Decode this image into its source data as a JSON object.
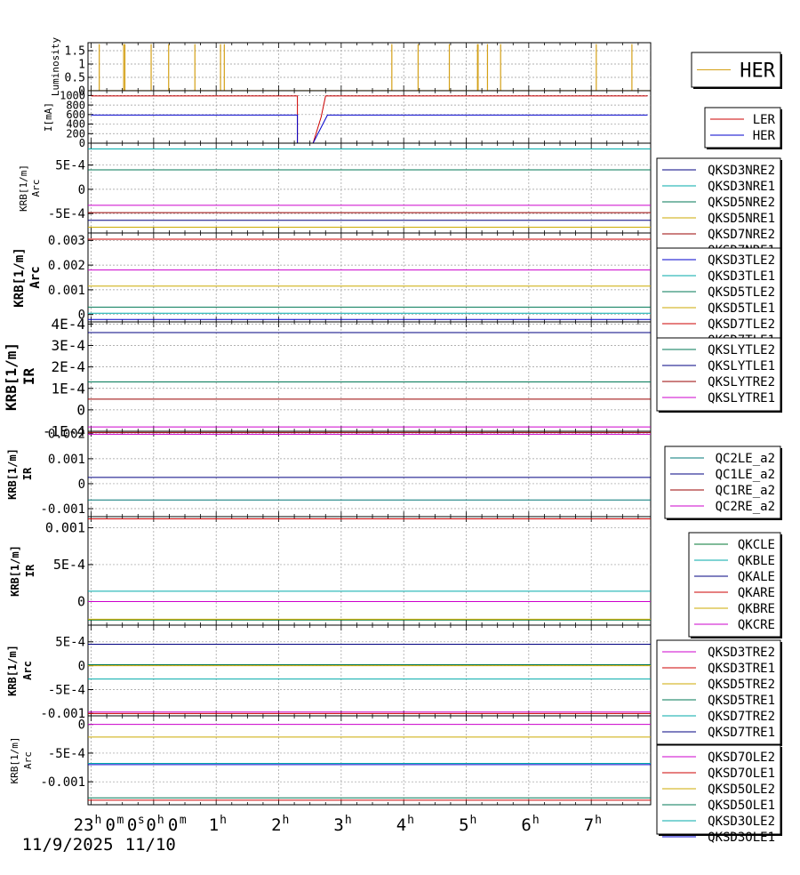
{
  "chart_data": [
    {
      "type": "line",
      "ylabel": "Luminosity",
      "yticks": [
        "0",
        "0.5",
        "1",
        "1.5"
      ],
      "ylim": [
        0,
        1.8
      ],
      "grid": true,
      "legend_placement": "right",
      "series": [
        {
          "name": "HER",
          "color": "#d4a017",
          "spikes_x_hours": [
            -0.87,
            -0.48,
            -0.46,
            -0.04,
            0.24,
            0.66,
            1.07,
            1.13,
            3.81,
            4.23,
            4.73,
            5.18,
            5.19,
            5.34,
            5.55,
            7.08,
            7.65
          ],
          "baseline": 0
        }
      ]
    },
    {
      "type": "line",
      "ylabel": "I[mA]",
      "yticks": [
        "0",
        "200",
        "400",
        "600",
        "800",
        "1000"
      ],
      "ylim": [
        0,
        1100
      ],
      "grid": true,
      "legend_placement": "right",
      "series": [
        {
          "name": "LER",
          "color": "#cc0000",
          "points": [
            [
              -1.0,
              990
            ],
            [
              2.3,
              990
            ],
            [
              2.3,
              0
            ],
            [
              2.55,
              0
            ],
            [
              2.68,
              550
            ],
            [
              2.75,
              990
            ],
            [
              7.9,
              990
            ]
          ]
        },
        {
          "name": "HER",
          "color": "#0000cc",
          "points": [
            [
              -1.0,
              590
            ],
            [
              2.3,
              590
            ],
            [
              2.3,
              0
            ],
            [
              2.55,
              0
            ],
            [
              2.78,
              590
            ],
            [
              7.9,
              590
            ]
          ]
        }
      ]
    },
    {
      "type": "line",
      "ylabel": "KRB[1/m]",
      "ylabel2": "Arc",
      "yticks": [
        "5E-4",
        "0",
        "-5E-4"
      ],
      "ylim": [
        -0.0009,
        0.00095
      ],
      "grid": true,
      "legend_placement": "right",
      "series": [
        {
          "name": "QKSD3NRE2",
          "color": "#000080",
          "value": -0.00064
        },
        {
          "name": "QKSD3NRE1",
          "color": "#00aaaa",
          "value": 0.00083
        },
        {
          "name": "QKSD5NRE2",
          "color": "#007755",
          "value": 0.0004
        },
        {
          "name": "QKSD5NRE1",
          "color": "#ccaa00",
          "value": -0.00078
        },
        {
          "name": "QKSD7NRE2",
          "color": "#990000",
          "value": -0.00048
        },
        {
          "name": "QKSD7NRE1",
          "color": "#cc00cc",
          "value": -0.00033
        }
      ]
    },
    {
      "type": "line",
      "ylabel": "KRB[1/m]",
      "ylabel2": "Arc",
      "yticks": [
        "0.003",
        "0.002",
        "0.001",
        "0"
      ],
      "ylim": [
        -0.0003,
        0.0033
      ],
      "grid": true,
      "legend_placement": "right",
      "series": [
        {
          "name": "QKSD3TLE2",
          "color": "#0000cc",
          "value": -0.0002
        },
        {
          "name": "QKSD3TLE1",
          "color": "#00aaaa",
          "value": 5e-05
        },
        {
          "name": "QKSD5TLE2",
          "color": "#007755",
          "value": 0.0003
        },
        {
          "name": "QKSD5TLE1",
          "color": "#ccaa00",
          "value": 0.00115
        },
        {
          "name": "QKSD7TLE2",
          "color": "#cc0000",
          "value": 0.00305
        },
        {
          "name": "QKSD7TLE1",
          "color": "#cc00cc",
          "value": 0.0018
        }
      ]
    },
    {
      "type": "line",
      "ylabel": "KRB[1/m]",
      "ylabel2": "IR",
      "yticks": [
        "4E-4",
        "3E-4",
        "2E-4",
        "1E-4",
        "0",
        "-1E-4"
      ],
      "ylim": [
        -0.0001,
        0.00041
      ],
      "grid": true,
      "legend_placement": "right",
      "series": [
        {
          "name": "QKSLYTLE2",
          "color": "#007755",
          "value": 0.00013
        },
        {
          "name": "QKSLYTLE1",
          "color": "#000080",
          "value": 0.00036
        },
        {
          "name": "QKSLYTRE2",
          "color": "#990000",
          "value": 5e-05
        },
        {
          "name": "QKSLYTRE1",
          "color": "#cc00cc",
          "value": -8e-05
        }
      ]
    },
    {
      "type": "line",
      "ylabel": "KRB[1/m]",
      "ylabel2": "IR",
      "yticks": [
        "0.002",
        "0.001",
        "0",
        "-0.001"
      ],
      "ylim": [
        -0.00132,
        0.0021
      ],
      "grid": true,
      "legend_placement": "right",
      "series": [
        {
          "name": "QC2LE_a2",
          "color": "#007777",
          "value": -0.00065
        },
        {
          "name": "QC1LE_a2",
          "color": "#000080",
          "value": 0.00025
        },
        {
          "name": "QC1RE_a2",
          "color": "#990000",
          "value": 0.00205
        },
        {
          "name": "QC2RE_a2",
          "color": "#cc00cc",
          "value": 0.00198
        }
      ]
    },
    {
      "type": "line",
      "ylabel": "KRB[1/m]",
      "ylabel2": "IR",
      "yticks": [
        "0.001",
        "5E-4",
        "0"
      ],
      "ylim": [
        -0.00032,
        0.00115
      ],
      "grid": true,
      "legend_placement": "right",
      "series": [
        {
          "name": "QKCLE",
          "color": "#007733",
          "value": -0.00025
        },
        {
          "name": "QKBLE",
          "color": "#00aaaa",
          "value": 0.00014
        },
        {
          "name": "QKALE",
          "color": "#000080",
          "value": 0.0
        },
        {
          "name": "QKARE",
          "color": "#cc0000",
          "value": 0.00112
        },
        {
          "name": "QKBRE",
          "color": "#ccaa00",
          "value": -0.00024
        },
        {
          "name": "QKCRE",
          "color": "#cc00cc",
          "value": 0.0
        }
      ]
    },
    {
      "type": "line",
      "ylabel": "KRB[1/m]",
      "ylabel2": "Arc",
      "yticks": [
        "5E-4",
        "0",
        "-5E-4",
        "-0.001"
      ],
      "ylim": [
        -0.00105,
        0.00085
      ],
      "grid": true,
      "legend_placement": "right",
      "series": [
        {
          "name": "QKSD3TRE2",
          "color": "#cc00cc",
          "value": -0.00097
        },
        {
          "name": "QKSD3TRE1",
          "color": "#cc0000",
          "value": -0.001
        },
        {
          "name": "QKSD5TRE2",
          "color": "#ccaa00",
          "value": 0.0
        },
        {
          "name": "QKSD5TRE1",
          "color": "#007755",
          "value": 2e-05
        },
        {
          "name": "QKSD7TRE2",
          "color": "#00aaaa",
          "value": -0.00028
        },
        {
          "name": "QKSD7TRE1",
          "color": "#000080",
          "value": 0.00045
        }
      ]
    },
    {
      "type": "line",
      "ylabel": "KRB[1/m]",
      "ylabel2": "Arc",
      "yticks": [
        "0",
        "-5E-4",
        "-0.001"
      ],
      "ylim": [
        -0.0014,
        0.00015
      ],
      "grid": true,
      "legend_placement": "right",
      "series": [
        {
          "name": "QKSD7OLE2",
          "color": "#cc00cc",
          "value": 0.0
        },
        {
          "name": "QKSD7OLE1",
          "color": "#cc0000",
          "value": -0.00132
        },
        {
          "name": "QKSD5OLE2",
          "color": "#ccaa00",
          "value": -0.00022
        },
        {
          "name": "QKSD5OLE1",
          "color": "#007755",
          "value": -0.00128
        },
        {
          "name": "QKSD3OLE2",
          "color": "#00aaaa",
          "value": -0.00068
        },
        {
          "name": "QKSD3OLE1",
          "color": "#0000cc",
          "value": -0.0007
        }
      ]
    }
  ],
  "time_axis": {
    "unit": "hours",
    "xlim": [
      -1.05,
      7.95
    ],
    "ticks": [
      {
        "hours": -1,
        "label": "23",
        "sup": "h",
        "label2": "0",
        "sup2": "m"
      },
      {
        "hours": 0,
        "label": "0",
        "sup": "h",
        "label2": "0",
        "sup2": "m"
      },
      {
        "hours": 1,
        "label": "1",
        "sup": "h"
      },
      {
        "hours": 2,
        "label": "2",
        "sup": "h"
      },
      {
        "hours": 3,
        "label": "3",
        "sup": "h"
      },
      {
        "hours": 4,
        "label": "4",
        "sup": "h"
      },
      {
        "hours": 5,
        "label": "5",
        "sup": "h"
      },
      {
        "hours": 6,
        "label": "6",
        "sup": "h"
      },
      {
        "hours": 7,
        "label": "7",
        "sup": "h"
      }
    ],
    "overlay_label": "0",
    "overlay_sup": "s",
    "dates": [
      {
        "hours": -1,
        "label": "11/9/2025"
      },
      {
        "hours": 0,
        "label": "11/10"
      }
    ]
  }
}
